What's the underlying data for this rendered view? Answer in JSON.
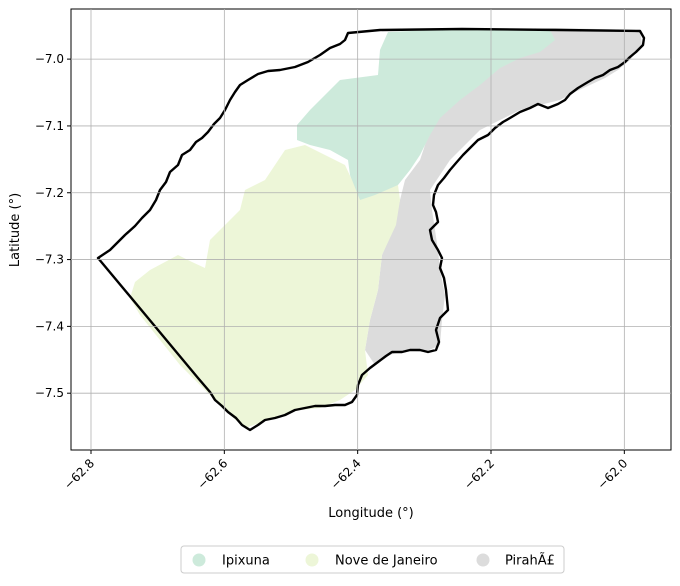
{
  "map": {
    "xlabel": "Longitude (°)",
    "ylabel": "Latitude (°)",
    "x_ticks": [
      {
        "value": -62.8,
        "label": "−62.8"
      },
      {
        "value": -62.6,
        "label": "−62.6"
      },
      {
        "value": -62.4,
        "label": "−62.4"
      },
      {
        "value": -62.2,
        "label": "−62.2"
      },
      {
        "value": -62.0,
        "label": "−62.0"
      }
    ],
    "y_ticks": [
      {
        "value": -7.0,
        "label": "−7.0"
      },
      {
        "value": -7.1,
        "label": "−7.1"
      },
      {
        "value": -7.2,
        "label": "−7.2"
      },
      {
        "value": -7.3,
        "label": "−7.3"
      },
      {
        "value": -7.4,
        "label": "−7.4"
      },
      {
        "value": -7.5,
        "label": "−7.5"
      }
    ],
    "xlim": [
      -62.83,
      -61.93
    ],
    "ylim": [
      -7.585,
      -6.925
    ],
    "grid": true,
    "legend_position": "bottom-center",
    "legend": [
      {
        "label": "Ipixuna",
        "color": "#cdeadb"
      },
      {
        "label": "Nove de Janeiro",
        "color": "#edf6d8"
      },
      {
        "label": "PirahÃ£",
        "color": "#dcdcdc"
      }
    ],
    "boundary_color": "#000000"
  }
}
